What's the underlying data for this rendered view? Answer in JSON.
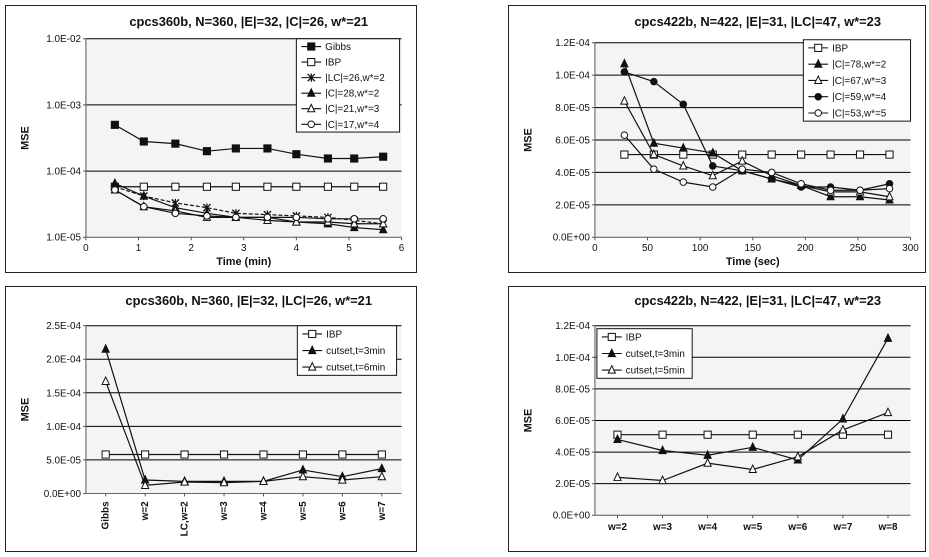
{
  "charts": [
    {
      "type": "line",
      "title": "cpcs360b, N=360, |E|=32, |C|=26, w*=21",
      "xlabel": "Time (min)",
      "ylabel": "MSE",
      "yscale": "log",
      "xlim": [
        0,
        6
      ],
      "ylim": [
        1e-05,
        0.01
      ],
      "xticks": [
        "0",
        "1",
        "2",
        "3",
        "4",
        "5",
        "6"
      ],
      "yticks": [
        "1.0E-05",
        "1.0E-04",
        "1.0E-03",
        "1.0E-02"
      ],
      "legend_position": "top-right",
      "series": [
        {
          "name": "Gibbs",
          "marker": "square-filled",
          "x": [
            0.55,
            1.1,
            1.7,
            2.3,
            2.85,
            3.45,
            4.0,
            4.6,
            5.1,
            5.65
          ],
          "y": [
            0.0005,
            0.00028,
            0.00026,
            0.0002,
            0.00022,
            0.00022,
            0.00018,
            0.000155,
            0.000155,
            0.000165
          ]
        },
        {
          "name": "IBP",
          "marker": "square-open",
          "x": [
            0.55,
            1.1,
            1.7,
            2.3,
            2.85,
            3.45,
            4.0,
            4.6,
            5.1,
            5.65
          ],
          "y": [
            5.8e-05,
            5.8e-05,
            5.8e-05,
            5.8e-05,
            5.8e-05,
            5.8e-05,
            5.8e-05,
            5.8e-05,
            5.8e-05,
            5.8e-05
          ]
        },
        {
          "name": "|LC|=26,w*=2",
          "marker": "star",
          "x": [
            0.55,
            1.1,
            1.7,
            2.3,
            2.85,
            3.45,
            4.0,
            4.6,
            5.1,
            5.65
          ],
          "y": [
            5.8e-05,
            4.2e-05,
            3.3e-05,
            2.8e-05,
            2.3e-05,
            2.2e-05,
            2.1e-05,
            2e-05,
            1.8e-05,
            1.6e-05
          ]
        },
        {
          "name": "|C|=28,w*=2",
          "marker": "triangle-filled",
          "x": [
            0.55,
            1.1,
            1.7,
            2.3,
            2.85,
            3.45,
            4.0,
            4.6,
            5.1,
            5.65
          ],
          "y": [
            6.5e-05,
            4.2e-05,
            2.8e-05,
            2.3e-05,
            2e-05,
            2e-05,
            1.7e-05,
            1.6e-05,
            1.4e-05,
            1.3e-05
          ]
        },
        {
          "name": "|C|=21,w*=3",
          "marker": "triangle-open",
          "x": [
            0.55,
            1.1,
            1.7,
            2.3,
            2.85,
            3.45,
            4.0,
            4.6,
            5.1,
            5.65
          ],
          "y": [
            5.2e-05,
            2.9e-05,
            2.5e-05,
            2e-05,
            2e-05,
            1.8e-05,
            1.7e-05,
            1.7e-05,
            1.6e-05,
            1.6e-05
          ]
        },
        {
          "name": "|C|=17,w*=4",
          "marker": "circle-open",
          "x": [
            0.55,
            1.1,
            1.7,
            2.3,
            2.85,
            3.45,
            4.0,
            4.6,
            5.1,
            5.65
          ],
          "y": [
            5.2e-05,
            2.9e-05,
            2.3e-05,
            2.1e-05,
            2e-05,
            2e-05,
            2e-05,
            1.9e-05,
            1.9e-05,
            1.9e-05
          ]
        }
      ]
    },
    {
      "type": "line",
      "title": "cpcs422b, N=422, |E|=31, |LC|=47, w*=23",
      "xlabel": "Time (sec)",
      "ylabel": "MSE",
      "yscale": "linear",
      "xlim": [
        0,
        300
      ],
      "ylim": [
        0,
        0.00012
      ],
      "xticks": [
        "0",
        "50",
        "100",
        "150",
        "200",
        "250",
        "300"
      ],
      "yticks": [
        "0.0E+00",
        "2.0E-05",
        "4.0E-05",
        "6.0E-05",
        "8.0E-05",
        "1.0E-04",
        "1.2E-04"
      ],
      "legend_position": "top-right",
      "series": [
        {
          "name": "IBP",
          "marker": "square-open",
          "x": [
            28,
            56,
            84,
            112,
            140,
            168,
            196,
            224,
            252,
            280
          ],
          "y": [
            5.1e-05,
            5.1e-05,
            5.1e-05,
            5.1e-05,
            5.1e-05,
            5.1e-05,
            5.1e-05,
            5.1e-05,
            5.1e-05,
            5.1e-05
          ]
        },
        {
          "name": "|C|=78,w*=2",
          "marker": "triangle-filled",
          "x": [
            28,
            56,
            84,
            112,
            140,
            168,
            196,
            224,
            252,
            280
          ],
          "y": [
            0.000107,
            5.8e-05,
            5.5e-05,
            5.2e-05,
            4.1e-05,
            3.6e-05,
            3.2e-05,
            2.5e-05,
            2.5e-05,
            2.3e-05
          ]
        },
        {
          "name": "|C|=67,w*=3",
          "marker": "triangle-open",
          "x": [
            28,
            56,
            84,
            112,
            140,
            168,
            196,
            224,
            252,
            280
          ],
          "y": [
            8.4e-05,
            5.1e-05,
            4.4e-05,
            3.8e-05,
            4.7e-05,
            3.8e-05,
            3.2e-05,
            2.8e-05,
            2.8e-05,
            2.5e-05
          ]
        },
        {
          "name": "|C|=59,w*=4",
          "marker": "circle-filled",
          "x": [
            28,
            56,
            84,
            112,
            140,
            168,
            196,
            224,
            252,
            280
          ],
          "y": [
            0.000102,
            9.6e-05,
            8.2e-05,
            4.4e-05,
            4.1e-05,
            3.6e-05,
            3.1e-05,
            3.1e-05,
            2.9e-05,
            3.3e-05
          ]
        },
        {
          "name": "|C|=53,w*=5",
          "marker": "circle-open",
          "x": [
            28,
            56,
            84,
            112,
            140,
            168,
            196,
            224,
            252,
            280
          ],
          "y": [
            6.3e-05,
            4.2e-05,
            3.4e-05,
            3.1e-05,
            4.2e-05,
            4e-05,
            3.3e-05,
            2.9e-05,
            2.9e-05,
            3e-05
          ]
        }
      ]
    },
    {
      "type": "line",
      "title": "cpcs360b, N=360, |E|=32, |LC|=26, w*=21",
      "xlabel": "",
      "ylabel": "MSE",
      "yscale": "linear",
      "ylim": [
        0,
        0.00025
      ],
      "categories": [
        "Gibbs",
        "w=2",
        "LC,w=2",
        "w=3",
        "w=4",
        "w=5",
        "w=6",
        "w=7"
      ],
      "yticks": [
        "0.0E+00",
        "5.0E-05",
        "1.0E-04",
        "1.5E-04",
        "2.0E-04",
        "2.5E-04"
      ],
      "legend_position": "top-right",
      "series": [
        {
          "name": "IBP",
          "marker": "square-open",
          "values": [
            5.8e-05,
            5.8e-05,
            5.8e-05,
            5.8e-05,
            5.8e-05,
            5.8e-05,
            5.8e-05,
            5.8e-05
          ]
        },
        {
          "name": "cutset,t=3min",
          "marker": "triangle-filled",
          "values": [
            0.000215,
            2e-05,
            1.8e-05,
            1.8e-05,
            1.8e-05,
            3.5e-05,
            2.5e-05,
            3.7e-05
          ]
        },
        {
          "name": "cutset,t=6min",
          "marker": "triangle-open",
          "values": [
            0.000167,
            1.2e-05,
            1.7e-05,
            1.6e-05,
            1.8e-05,
            2.5e-05,
            2e-05,
            2.5e-05
          ]
        }
      ]
    },
    {
      "type": "line",
      "title": "cpcs422b, N=422, |E|=31, |LC|=47, w*=23",
      "xlabel": "",
      "ylabel": "MSE",
      "yscale": "linear",
      "ylim": [
        0,
        0.00012
      ],
      "categories": [
        "w=2",
        "w=3",
        "w=4",
        "w=5",
        "w=6",
        "w=7",
        "w=8"
      ],
      "yticks": [
        "0.0E+00",
        "2.0E-05",
        "4.0E-05",
        "6.0E-05",
        "8.0E-05",
        "1.0E-04",
        "1.2E-04"
      ],
      "legend_position": "top-left",
      "series": [
        {
          "name": "IBP",
          "marker": "square-open",
          "values": [
            5.1e-05,
            5.1e-05,
            5.1e-05,
            5.1e-05,
            5.1e-05,
            5.1e-05,
            5.1e-05
          ]
        },
        {
          "name": "cutset,t=3min",
          "marker": "triangle-filled",
          "values": [
            4.8e-05,
            4.1e-05,
            3.8e-05,
            4.3e-05,
            3.5e-05,
            6.1e-05,
            0.000112
          ]
        },
        {
          "name": "cutset,t=5min",
          "marker": "triangle-open",
          "values": [
            2.4e-05,
            2.2e-05,
            3.3e-05,
            2.9e-05,
            3.7e-05,
            5.4e-05,
            6.5e-05
          ]
        }
      ]
    }
  ]
}
